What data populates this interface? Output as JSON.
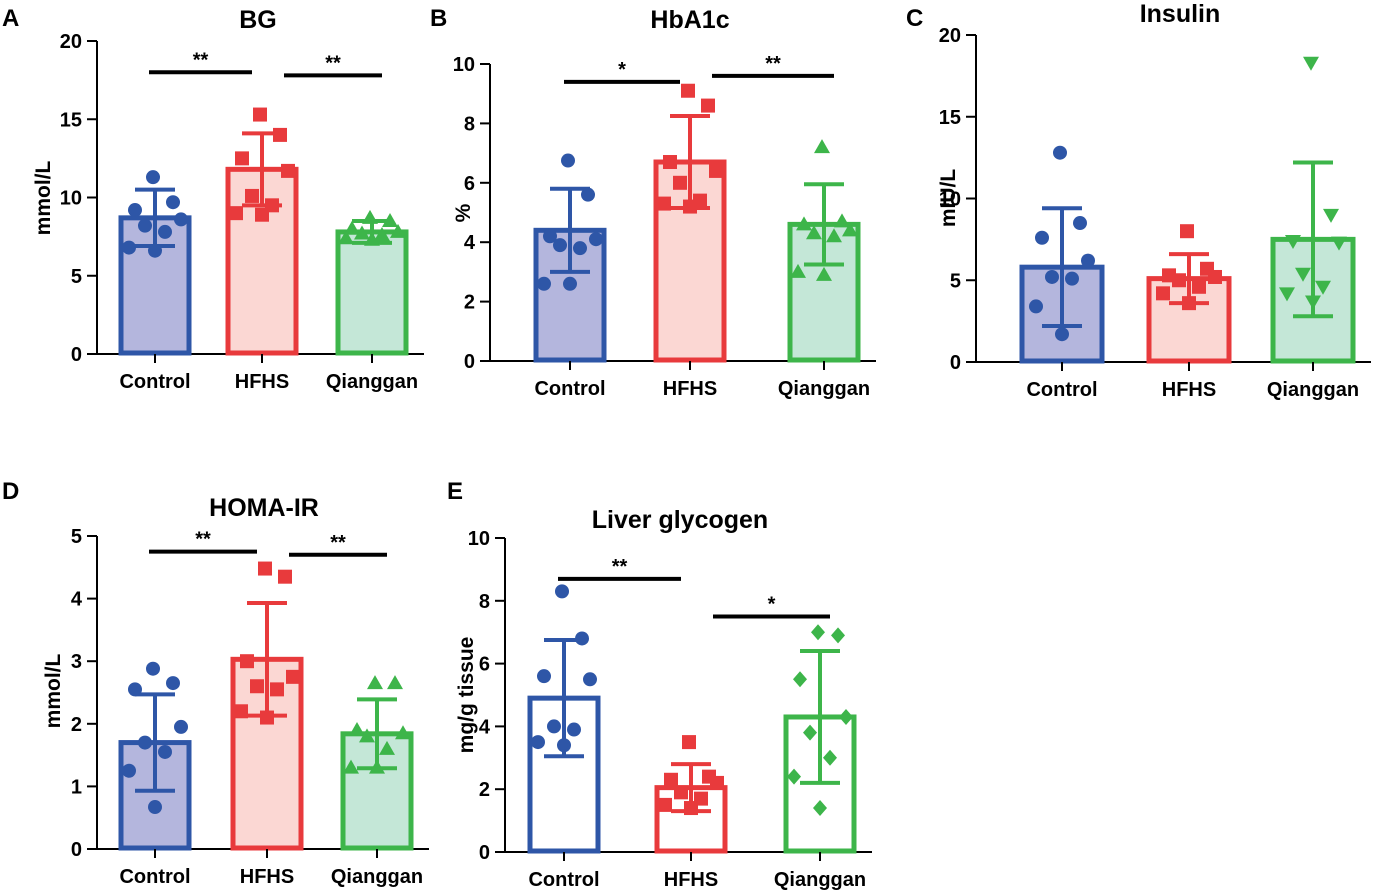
{
  "colors": {
    "control": "#2e56a7",
    "hfhs": "#e83a3c",
    "qianggan": "#3db54a",
    "control_fill": "#b4b6dd",
    "hfhs_fill": "#fbd7d3",
    "qianggan_fill": "#c4e7d7"
  },
  "chart_data": [
    {
      "panel": "A",
      "type": "bar",
      "title": "BG",
      "ylabel": "mmol/L",
      "ylim": [
        0,
        20
      ],
      "yticks": [
        "0",
        "5",
        "10",
        "15",
        "20"
      ],
      "categories": [
        "Control",
        "HFHS",
        "Qianggan"
      ],
      "marker": [
        "circle",
        "square",
        "triangle-up"
      ],
      "filled": true,
      "means": [
        8.7,
        11.8,
        7.8
      ],
      "sd": [
        1.8,
        2.3,
        0.7
      ],
      "points": [
        [
          11.3,
          9.7,
          9.2,
          8.6,
          8.2,
          7.8,
          6.8,
          6.6
        ],
        [
          15.3,
          14.0,
          12.5,
          11.7,
          10.1,
          9.5,
          9.0,
          8.9
        ],
        [
          8.7,
          8.5,
          8.0,
          7.8,
          7.7,
          7.6,
          7.4,
          7.3
        ]
      ],
      "significance": [
        {
          "from": 0,
          "to": 1,
          "label": "**",
          "y": 18.0
        },
        {
          "from": 1,
          "to": 2,
          "label": "**",
          "y": 17.8
        }
      ]
    },
    {
      "panel": "B",
      "type": "bar",
      "title": "HbA1c",
      "ylabel": "%",
      "ylim": [
        0,
        10
      ],
      "yticks": [
        "0",
        "2",
        "4",
        "6",
        "8",
        "10"
      ],
      "categories": [
        "Control",
        "HFHS",
        "Qianggan"
      ],
      "marker": [
        "circle",
        "square",
        "triangle-up"
      ],
      "filled": true,
      "means": [
        4.4,
        6.7,
        4.6
      ],
      "sd": [
        1.4,
        1.55,
        1.35
      ],
      "points": [
        [
          6.75,
          5.6,
          4.2,
          4.1,
          3.9,
          3.8,
          2.6,
          2.6
        ],
        [
          9.1,
          8.6,
          6.7,
          6.4,
          6.0,
          5.4,
          5.3,
          5.2
        ],
        [
          7.2,
          4.7,
          4.6,
          4.4,
          4.3,
          4.2,
          3.0,
          2.9
        ]
      ],
      "significance": [
        {
          "from": 0,
          "to": 1,
          "label": "*",
          "y": 9.4
        },
        {
          "from": 1,
          "to": 2,
          "label": "**",
          "y": 9.6
        }
      ]
    },
    {
      "panel": "C",
      "type": "bar",
      "title": "Insulin",
      "ylabel": "mIU/L",
      "ylim": [
        0,
        20
      ],
      "yticks": [
        "0",
        "5",
        "10",
        "15",
        "20"
      ],
      "categories": [
        "Control",
        "HFHS",
        "Qianggan"
      ],
      "marker": [
        "circle",
        "square",
        "triangle-down"
      ],
      "filled": true,
      "means": [
        5.8,
        5.1,
        7.5
      ],
      "sd": [
        3.6,
        1.5,
        4.7
      ],
      "points": [
        [
          12.8,
          8.5,
          7.6,
          6.2,
          5.2,
          5.1,
          3.4,
          1.7
        ],
        [
          8.0,
          5.7,
          5.3,
          5.2,
          5.0,
          4.6,
          4.2,
          3.6
        ],
        [
          18.3,
          9.0,
          7.4,
          7.3,
          5.4,
          4.6,
          4.2,
          3.7
        ]
      ],
      "significance": []
    },
    {
      "panel": "D",
      "type": "bar",
      "title": "HOMA-IR",
      "ylabel": "mmol/L",
      "ylim": [
        0,
        5
      ],
      "yticks": [
        "0",
        "1",
        "2",
        "3",
        "4",
        "5"
      ],
      "categories": [
        "Control",
        "HFHS",
        "Qianggan"
      ],
      "marker": [
        "circle",
        "square",
        "triangle-up"
      ],
      "filled": true,
      "means": [
        1.7,
        3.03,
        1.84
      ],
      "sd": [
        0.77,
        0.9,
        0.55
      ],
      "points": [
        [
          2.88,
          2.65,
          2.55,
          1.95,
          1.7,
          1.55,
          1.25,
          0.67
        ],
        [
          4.48,
          4.35,
          3.0,
          2.75,
          2.6,
          2.55,
          2.2,
          2.1
        ],
        [
          2.65,
          2.65,
          1.9,
          1.85,
          1.8,
          1.6,
          1.3,
          1.3
        ]
      ],
      "significance": [
        {
          "from": 0,
          "to": 1,
          "label": "**",
          "y": 4.75
        },
        {
          "from": 1,
          "to": 2,
          "label": "**",
          "y": 4.7
        }
      ]
    },
    {
      "panel": "E",
      "type": "bar",
      "title": "Liver glycogen",
      "ylabel": "mg/g tissue",
      "ylim": [
        0,
        10
      ],
      "yticks": [
        "0",
        "2",
        "4",
        "6",
        "8",
        "10"
      ],
      "categories": [
        "Control",
        "HFHS",
        "Qianggan"
      ],
      "marker": [
        "circle",
        "square",
        "diamond"
      ],
      "filled": false,
      "means": [
        4.9,
        2.05,
        4.3
      ],
      "sd": [
        1.85,
        0.75,
        2.1
      ],
      "points": [
        [
          8.3,
          6.8,
          5.6,
          5.5,
          4.0,
          3.9,
          3.5,
          3.4
        ],
        [
          3.5,
          2.4,
          2.3,
          2.2,
          1.9,
          1.7,
          1.5,
          1.4
        ],
        [
          7.0,
          6.9,
          5.5,
          4.3,
          3.8,
          3.0,
          2.4,
          1.4
        ]
      ],
      "significance": [
        {
          "from": 0,
          "to": 1,
          "label": "**",
          "y": 8.7
        },
        {
          "from": 1,
          "to": 2,
          "label": "*",
          "y": 7.5
        }
      ]
    }
  ]
}
